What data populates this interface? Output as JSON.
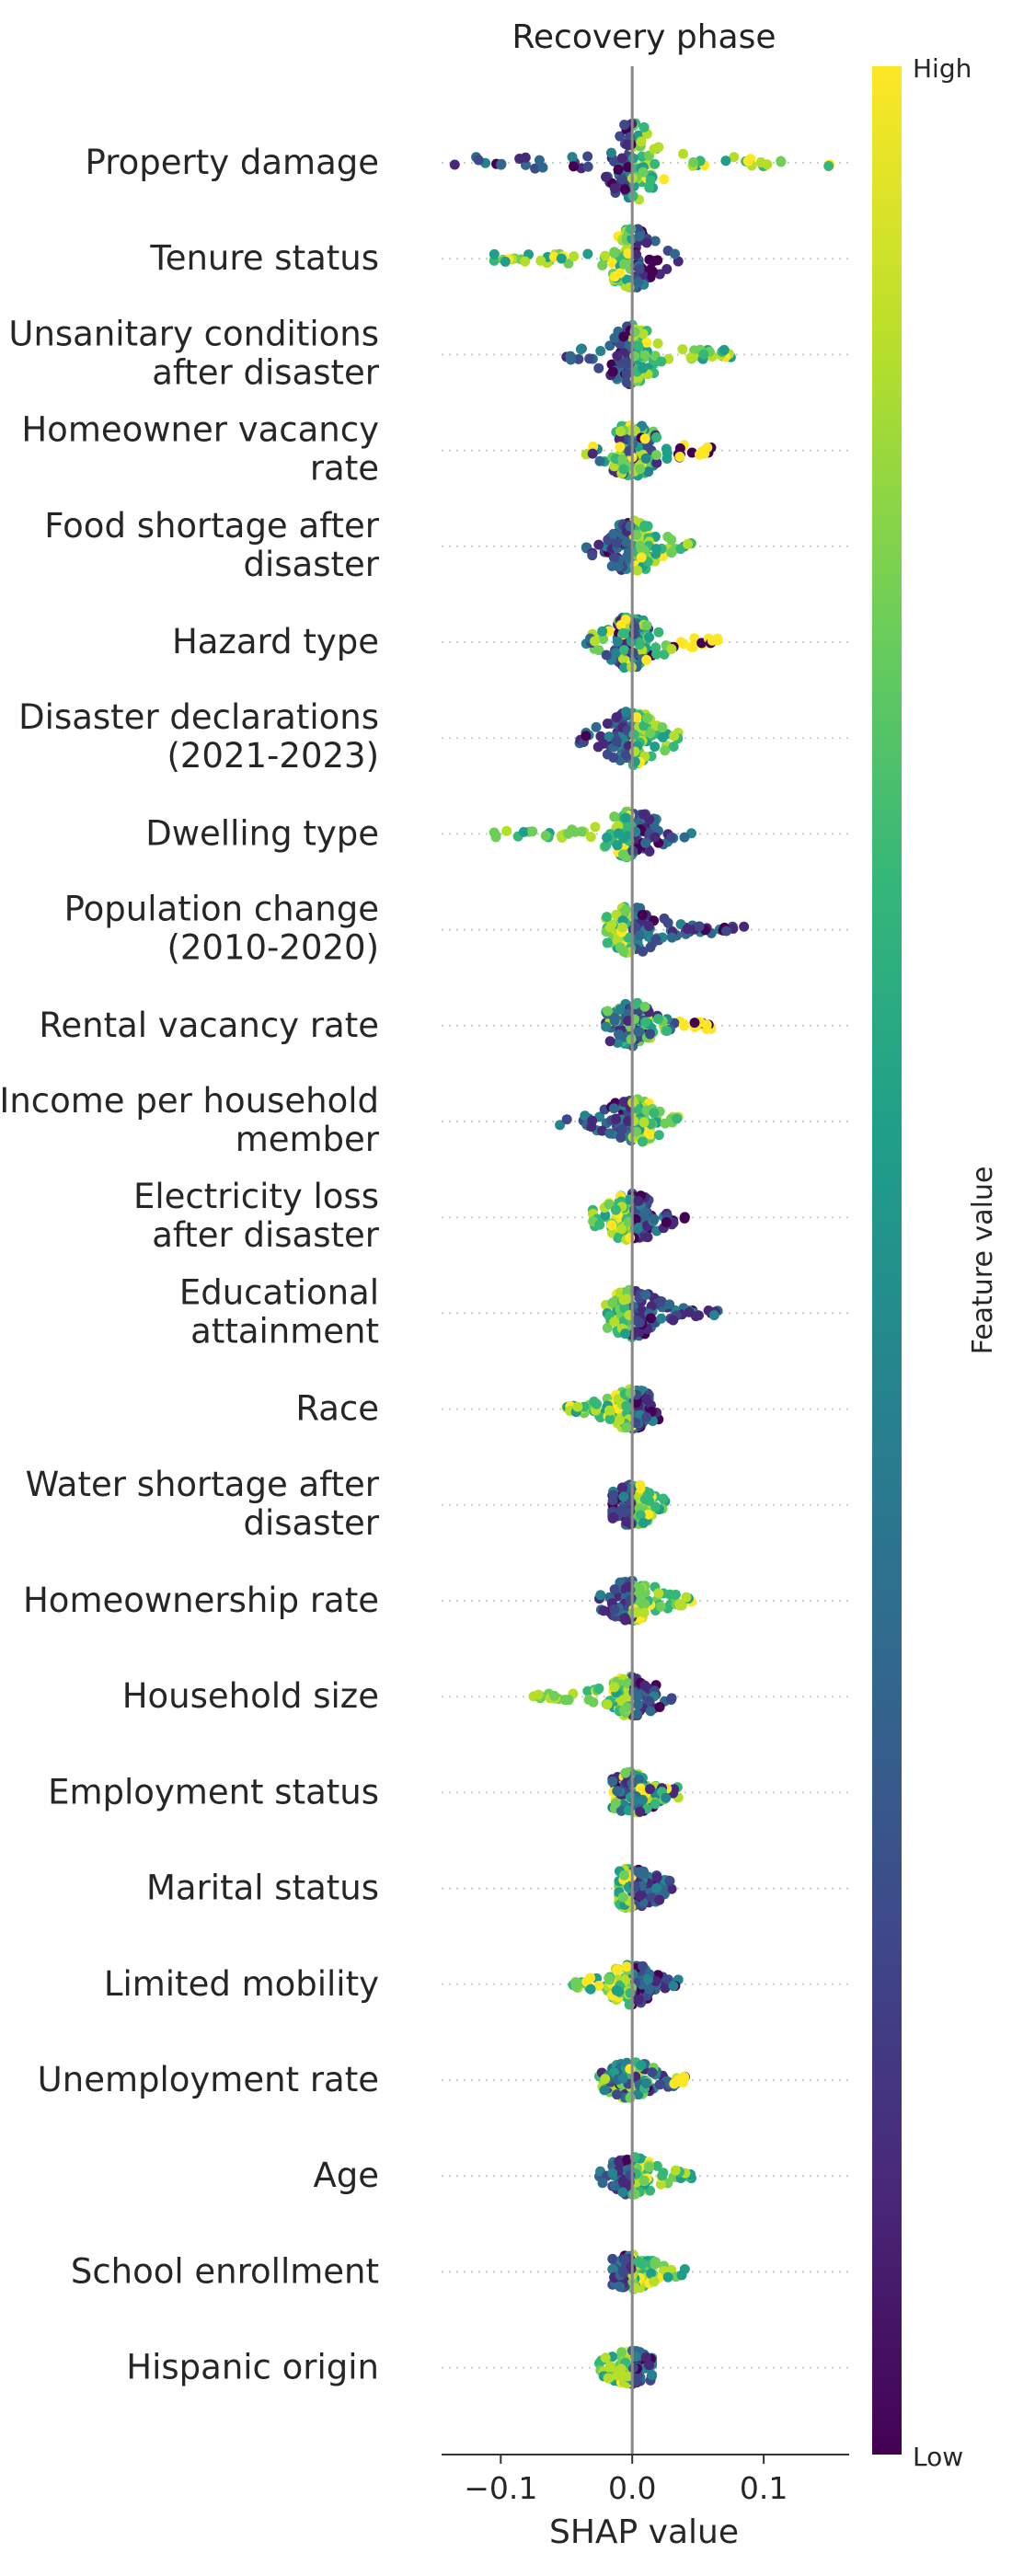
{
  "chart_data": {
    "type": "scatter",
    "subtype": "beeswarm",
    "title": "Recovery phase",
    "xlabel": "SHAP value",
    "xlim": [
      -0.145,
      0.165
    ],
    "xticks": [
      {
        "value": -0.1,
        "label": "−0.1"
      },
      {
        "value": 0.0,
        "label": "0.0"
      },
      {
        "value": 0.1,
        "label": "0.1"
      }
    ],
    "zero_line": 0,
    "grid": false,
    "colorbar": {
      "label": "Feature value",
      "high_label": "High",
      "low_label": "Low",
      "colormap": "viridis",
      "colors": [
        "#440154",
        "#482878",
        "#3e4989",
        "#31688e",
        "#26828e",
        "#1f9e89",
        "#35b779",
        "#6ece58",
        "#b5de2b",
        "#fde725"
      ]
    },
    "features": [
      {
        "name": "Property damage",
        "lines": [
          "Property damage"
        ],
        "min": -0.135,
        "max": 0.15,
        "low_side": "neg",
        "spread": 1.0
      },
      {
        "name": "Tenure status",
        "lines": [
          "Tenure status"
        ],
        "min": -0.105,
        "max": 0.035,
        "low_side": "pos",
        "spread": 0.7
      },
      {
        "name": "Unsanitary conditions after disaster",
        "lines": [
          "Unsanitary conditions",
          "after disaster"
        ],
        "min": -0.05,
        "max": 0.075,
        "low_side": "neg",
        "spread": 0.7
      },
      {
        "name": "Homeowner vacancy rate",
        "lines": [
          "Homeowner vacancy",
          "rate"
        ],
        "min": -0.035,
        "max": 0.06,
        "low_side": "mix",
        "spread": 0.6
      },
      {
        "name": "Food shortage after disaster",
        "lines": [
          "Food shortage after",
          "disaster"
        ],
        "min": -0.035,
        "max": 0.045,
        "low_side": "neg",
        "spread": 0.6
      },
      {
        "name": "Hazard type",
        "lines": [
          "Hazard type"
        ],
        "min": -0.035,
        "max": 0.065,
        "low_side": "mix",
        "spread": 0.6
      },
      {
        "name": "Disaster declarations (2021-2023)",
        "lines": [
          "Disaster declarations",
          "(2021-2023)"
        ],
        "min": -0.04,
        "max": 0.035,
        "low_side": "neg",
        "spread": 0.6
      },
      {
        "name": "Dwelling type",
        "lines": [
          "Dwelling type"
        ],
        "min": -0.105,
        "max": 0.045,
        "low_side": "pos",
        "spread": 0.5
      },
      {
        "name": "Population change (2010-2020)",
        "lines": [
          "Population change",
          "(2010-2020)"
        ],
        "min": -0.02,
        "max": 0.085,
        "low_side": "pos",
        "spread": 0.5
      },
      {
        "name": "Rental vacancy rate",
        "lines": [
          "Rental vacancy rate"
        ],
        "min": -0.02,
        "max": 0.06,
        "low_side": "mix",
        "spread": 0.5
      },
      {
        "name": "Income per household member",
        "lines": [
          "Income per household",
          "member"
        ],
        "min": -0.055,
        "max": 0.035,
        "low_side": "neg",
        "spread": 0.5
      },
      {
        "name": "Electricity loss after disaster",
        "lines": [
          "Electricity loss",
          "after disaster"
        ],
        "min": -0.03,
        "max": 0.04,
        "low_side": "pos",
        "spread": 0.5
      },
      {
        "name": "Educational attainment",
        "lines": [
          "Educational",
          "attainment"
        ],
        "min": -0.02,
        "max": 0.065,
        "low_side": "pos",
        "spread": 0.5
      },
      {
        "name": "Race",
        "lines": [
          "Race"
        ],
        "min": -0.05,
        "max": 0.02,
        "low_side": "pos",
        "spread": 0.4
      },
      {
        "name": "Water shortage after disaster",
        "lines": [
          "Water shortage after",
          "disaster"
        ],
        "min": -0.015,
        "max": 0.025,
        "low_side": "neg",
        "spread": 0.4
      },
      {
        "name": "Homeownership rate",
        "lines": [
          "Homeownership rate"
        ],
        "min": -0.025,
        "max": 0.045,
        "low_side": "neg",
        "spread": 0.4
      },
      {
        "name": "Household size",
        "lines": [
          "Household size"
        ],
        "min": -0.075,
        "max": 0.03,
        "low_side": "pos",
        "spread": 0.4
      },
      {
        "name": "Employment status",
        "lines": [
          "Employment status"
        ],
        "min": -0.015,
        "max": 0.035,
        "low_side": "mix",
        "spread": 0.4
      },
      {
        "name": "Marital status",
        "lines": [
          "Marital status"
        ],
        "min": -0.01,
        "max": 0.03,
        "low_side": "pos",
        "spread": 0.4
      },
      {
        "name": "Limited mobility",
        "lines": [
          "Limited mobility"
        ],
        "min": -0.045,
        "max": 0.035,
        "low_side": "pos",
        "spread": 0.4
      },
      {
        "name": "Unemployment rate",
        "lines": [
          "Unemployment rate"
        ],
        "min": -0.025,
        "max": 0.04,
        "low_side": "mix",
        "spread": 0.35
      },
      {
        "name": "Age",
        "lines": [
          "Age"
        ],
        "min": -0.025,
        "max": 0.045,
        "low_side": "neg",
        "spread": 0.35
      },
      {
        "name": "School enrollment",
        "lines": [
          "School enrollment"
        ],
        "min": -0.015,
        "max": 0.04,
        "low_side": "neg",
        "spread": 0.3
      },
      {
        "name": "Hispanic origin",
        "lines": [
          "Hispanic origin"
        ],
        "min": -0.025,
        "max": 0.015,
        "low_side": "pos",
        "spread": 0.3
      }
    ]
  }
}
